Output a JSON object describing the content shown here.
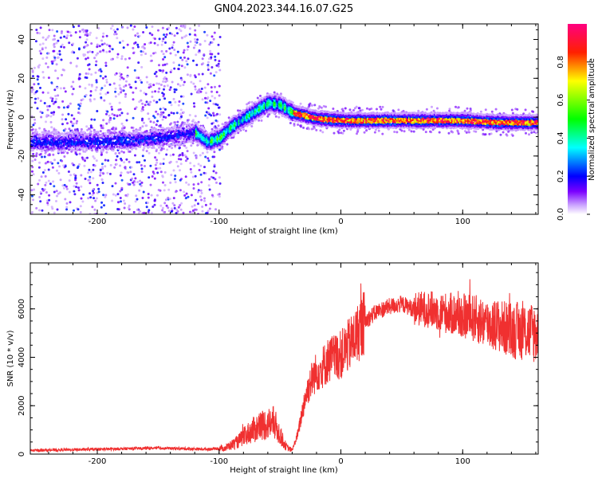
{
  "page_title": "GN04.2023.344.16.07.G25",
  "chart_data": [
    {
      "type": "heatmap",
      "title": "GN04.2023.344.16.07.G25",
      "xlabel": "Height of straight line (km)",
      "ylabel": "Frequency (Hz)",
      "xlim": [
        -255,
        162
      ],
      "ylim": [
        -50,
        48
      ],
      "x_ticks": [
        -200,
        -100,
        0,
        100
      ],
      "y_ticks": [
        -40,
        -20,
        0,
        20,
        40
      ],
      "colorbar": {
        "label": "Normalized spectral amplitude",
        "range": [
          0,
          1
        ],
        "ticks": [
          "0.0",
          "0.2",
          "0.4",
          "0.6",
          "0.8"
        ],
        "colormap": [
          "#ffffff",
          "#7b00ff",
          "#0000ff",
          "#00ffff",
          "#00ff00",
          "#ffff00",
          "#ff0000",
          "#ff0080"
        ]
      },
      "dominant_frequency_track": [
        {
          "x": -200,
          "y": -12
        },
        {
          "x": -150,
          "y": -10
        },
        {
          "x": -120,
          "y": -7
        },
        {
          "x": -110,
          "y": -12
        },
        {
          "x": -100,
          "y": -10
        },
        {
          "x": -90,
          "y": -4
        },
        {
          "x": -80,
          "y": 0
        },
        {
          "x": -70,
          "y": 4
        },
        {
          "x": -60,
          "y": 8
        },
        {
          "x": -50,
          "y": 7
        },
        {
          "x": -40,
          "y": 3
        },
        {
          "x": -20,
          "y": 0
        },
        {
          "x": 0,
          "y": -1
        },
        {
          "x": 50,
          "y": -1
        },
        {
          "x": 100,
          "y": -1
        },
        {
          "x": 130,
          "y": -2
        },
        {
          "x": 162,
          "y": -2
        }
      ]
    },
    {
      "type": "line",
      "xlabel": "Height of straight line (km)",
      "ylabel": "SNR (10 * v/v)",
      "xlim": [
        -255,
        162
      ],
      "ylim": [
        0,
        7900
      ],
      "x_ticks": [
        -200,
        -100,
        0,
        100
      ],
      "y_ticks": [
        0,
        2000,
        4000,
        6000
      ],
      "series": [
        {
          "color": "#f03030",
          "points": [
            {
              "x": -255,
              "y": 150
            },
            {
              "x": -200,
              "y": 200
            },
            {
              "x": -150,
              "y": 250
            },
            {
              "x": -110,
              "y": 200
            },
            {
              "x": -95,
              "y": 250
            },
            {
              "x": -85,
              "y": 500
            },
            {
              "x": -75,
              "y": 900
            },
            {
              "x": -65,
              "y": 1200
            },
            {
              "x": -55,
              "y": 1300
            },
            {
              "x": -50,
              "y": 800
            },
            {
              "x": -45,
              "y": 300
            },
            {
              "x": -40,
              "y": 150
            },
            {
              "x": -35,
              "y": 900
            },
            {
              "x": -30,
              "y": 2200
            },
            {
              "x": -25,
              "y": 3000
            },
            {
              "x": -20,
              "y": 3400
            },
            {
              "x": -15,
              "y": 3600
            },
            {
              "x": -10,
              "y": 3900
            },
            {
              "x": 0,
              "y": 4100
            },
            {
              "x": 10,
              "y": 4700
            },
            {
              "x": 20,
              "y": 5500
            },
            {
              "x": 30,
              "y": 5900
            },
            {
              "x": 40,
              "y": 6100
            },
            {
              "x": 50,
              "y": 6200
            },
            {
              "x": 60,
              "y": 6000
            },
            {
              "x": 70,
              "y": 6000
            },
            {
              "x": 80,
              "y": 5900
            },
            {
              "x": 90,
              "y": 5800
            },
            {
              "x": 100,
              "y": 5700
            },
            {
              "x": 110,
              "y": 5600
            },
            {
              "x": 120,
              "y": 5400
            },
            {
              "x": 130,
              "y": 5300
            },
            {
              "x": 140,
              "y": 5100
            },
            {
              "x": 150,
              "y": 5100
            },
            {
              "x": 162,
              "y": 5000
            }
          ]
        }
      ]
    }
  ]
}
